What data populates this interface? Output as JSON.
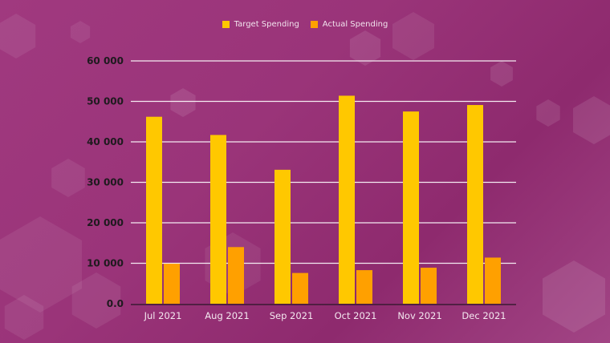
{
  "chart_data": {
    "type": "bar",
    "categories": [
      "Jul 2021",
      "Aug 2021",
      "Sep 2021",
      "Oct 2021",
      "Nov 2021",
      "Dec 2021"
    ],
    "series": [
      {
        "name": "Target Spending",
        "color": "#ffc800",
        "values": [
          46200,
          41700,
          33100,
          51400,
          47500,
          49100
        ]
      },
      {
        "name": "Actual Spending",
        "color": "#ffa000",
        "values": [
          9900,
          14000,
          7600,
          8300,
          8900,
          11400
        ]
      }
    ],
    "ylim": [
      0,
      60000
    ],
    "yticks": [
      0,
      10000,
      20000,
      30000,
      40000,
      50000,
      60000
    ],
    "ytick_labels": [
      "0.0",
      "10 000",
      "20 000",
      "30 000",
      "40 000",
      "50 000",
      "60 000"
    ],
    "grid": true,
    "legend_placement": "top"
  }
}
